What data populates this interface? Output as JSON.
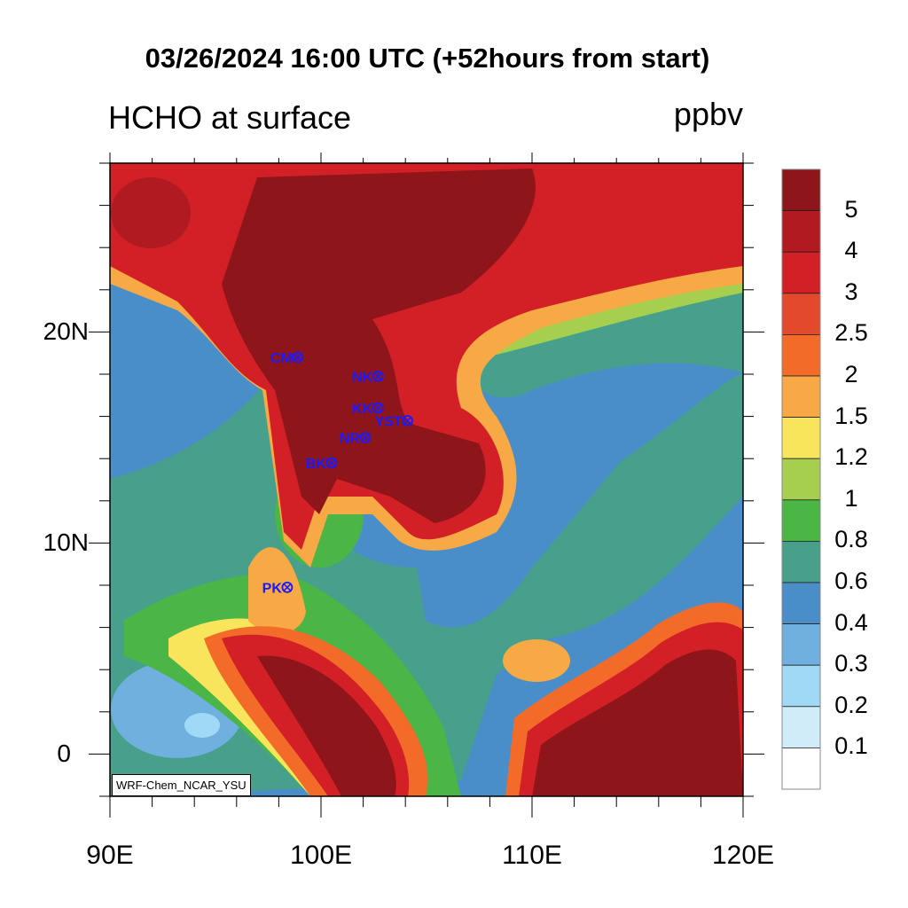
{
  "title": "03/26/2024 16:00 UTC (+52hours from start)",
  "subtitle": "HCHO at surface",
  "units": "ppbv",
  "credit": "WRF-Chem_NCAR_YSU",
  "axes": {
    "lat_labels": [
      "20N",
      "10N",
      "0"
    ],
    "lon_labels": [
      "90E",
      "100E",
      "110E",
      "120E"
    ],
    "lon_range": [
      90,
      120
    ],
    "lat_range": [
      -2,
      28
    ]
  },
  "colorbar": {
    "labels": [
      "5",
      "4",
      "3",
      "2.5",
      "2",
      "1.5",
      "1.2",
      "1",
      "0.8",
      "0.6",
      "0.4",
      "0.3",
      "0.2",
      "0.1"
    ],
    "colors": [
      "#8e1519",
      "#b01a20",
      "#d32027",
      "#e3492b",
      "#f26b29",
      "#f6a944",
      "#f8e55b",
      "#a6cf50",
      "#4bb545",
      "#47a08c",
      "#4a8ec9",
      "#6fb0de",
      "#9fd9f5",
      "#d1ecf9",
      "#ffffff"
    ]
  },
  "stations": [
    {
      "label": "CM",
      "lon": 98.9,
      "lat": 18.8
    },
    {
      "label": "NK",
      "lon": 102.7,
      "lat": 17.9
    },
    {
      "label": "KK",
      "lon": 102.7,
      "lat": 16.4
    },
    {
      "label": "YST",
      "lon": 104.1,
      "lat": 15.8
    },
    {
      "label": "NR",
      "lon": 102.1,
      "lat": 15.0
    },
    {
      "label": "BK",
      "lon": 100.5,
      "lat": 13.8
    },
    {
      "label": "PK",
      "lon": 98.4,
      "lat": 7.9
    }
  ]
}
